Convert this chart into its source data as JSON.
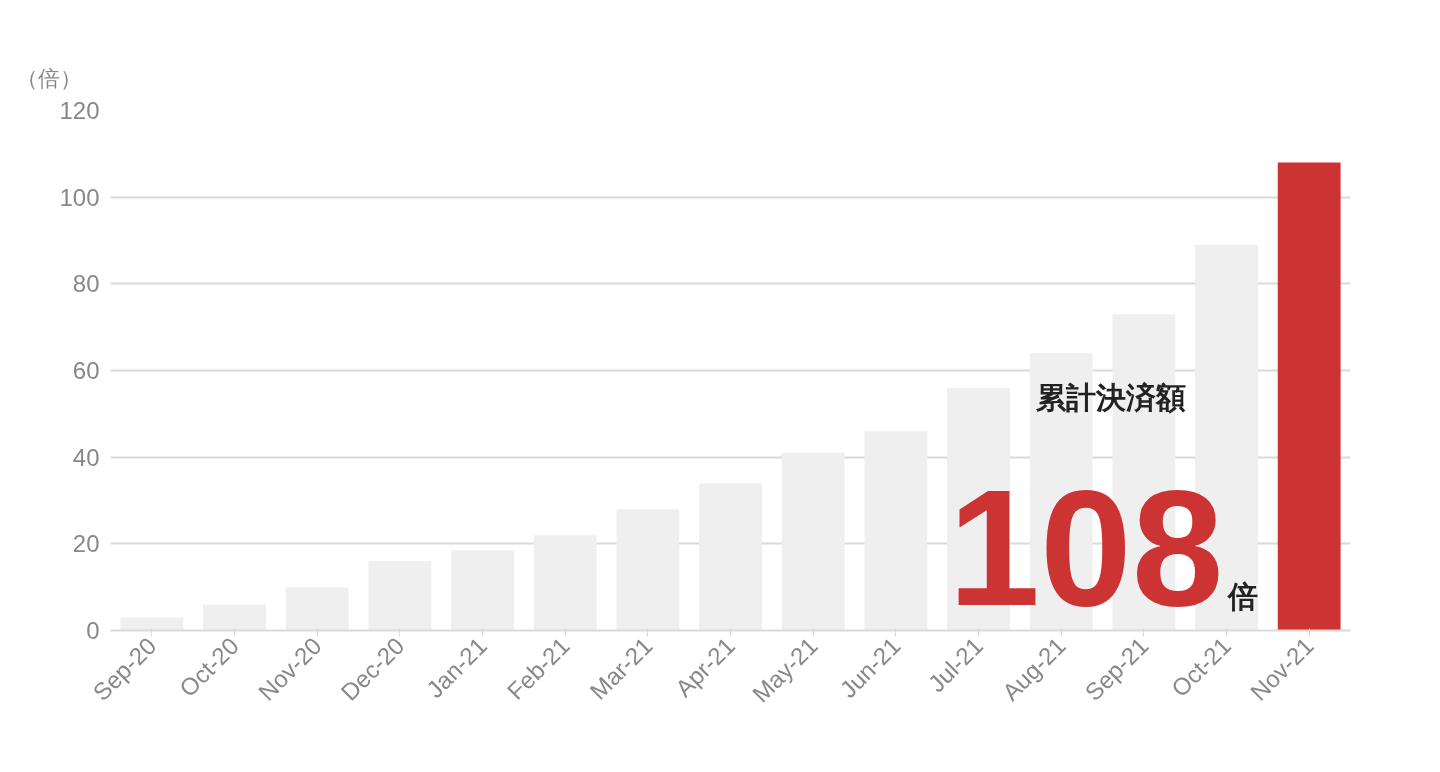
{
  "chart_data": {
    "type": "bar",
    "ylabel": "（倍）",
    "categories": [
      "Sep-20",
      "Oct-20",
      "Nov-20",
      "Dec-20",
      "Jan-21",
      "Feb-21",
      "Mar-21",
      "Apr-21",
      "May-21",
      "Jun-21",
      "Jul-21",
      "Aug-21",
      "Sep-21",
      "Oct-21",
      "Nov-21"
    ],
    "values": [
      3,
      6,
      10,
      16,
      18.5,
      22,
      28,
      34,
      41,
      46,
      56,
      64,
      73,
      89,
      108
    ],
    "colors": [
      "#efefef",
      "#efefef",
      "#efefef",
      "#efefef",
      "#efefef",
      "#efefef",
      "#efefef",
      "#efefef",
      "#efefef",
      "#efefef",
      "#efefef",
      "#efefef",
      "#efefef",
      "#efefef",
      "#cc3333"
    ],
    "ylim": [
      0,
      120
    ],
    "yticks": [
      0,
      20,
      40,
      60,
      80,
      100,
      120
    ],
    "grid": "y",
    "annotations": [
      "累計決済額",
      "108",
      "倍"
    ]
  }
}
